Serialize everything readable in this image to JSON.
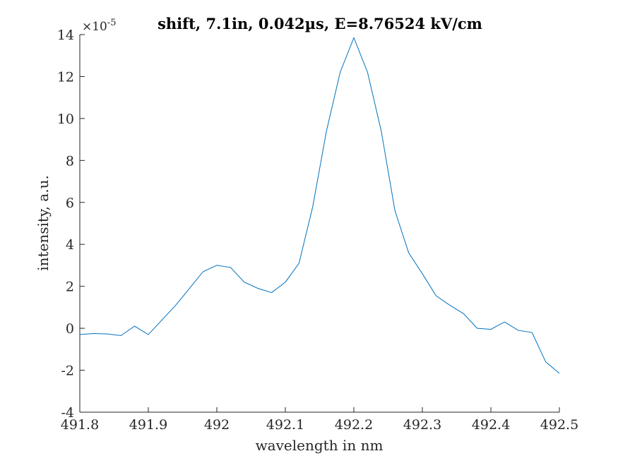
{
  "chart_data": {
    "type": "line",
    "title": "shift, 7.1in, 0.042µs, E=8.76524 kV/cm",
    "xlabel": "wavelength in nm",
    "ylabel": "intensity, a.u.",
    "exponent_label": "×10",
    "exponent_power": "-5",
    "xlim": [
      491.8,
      492.5
    ],
    "ylim": [
      -4,
      14
    ],
    "xticks": [
      491.8,
      491.9,
      492,
      492.1,
      492.2,
      492.3,
      492.4,
      492.5
    ],
    "xtick_labels": [
      "491.8",
      "491.9",
      "492",
      "492.1",
      "492.2",
      "492.3",
      "492.4",
      "492.5"
    ],
    "yticks": [
      -4,
      -2,
      0,
      2,
      4,
      6,
      8,
      10,
      12,
      14
    ],
    "ytick_labels": [
      "-4",
      "-2",
      "0",
      "2",
      "4",
      "6",
      "8",
      "10",
      "12",
      "14"
    ],
    "grid": false,
    "line_color": "#0072bd",
    "series": [
      {
        "x": [
          491.8,
          491.82,
          491.84,
          491.86,
          491.88,
          491.9,
          491.92,
          491.94,
          491.96,
          491.98,
          492.0,
          492.02,
          492.04,
          492.06,
          492.08,
          492.1,
          492.12,
          492.14,
          492.16,
          492.18,
          492.2,
          492.22,
          492.24,
          492.26,
          492.28,
          492.3,
          492.32,
          492.34,
          492.36,
          492.38,
          492.4,
          492.42,
          492.44,
          492.46,
          492.48,
          492.5
        ],
        "values": [
          -0.3,
          -0.25,
          -0.27,
          -0.35,
          0.1,
          -0.3,
          0.4,
          1.1,
          1.9,
          2.7,
          3.0,
          2.9,
          2.2,
          1.9,
          1.7,
          2.2,
          3.1,
          5.8,
          9.4,
          12.2,
          13.85,
          12.2,
          9.4,
          5.6,
          3.6,
          2.6,
          1.55,
          1.1,
          0.7,
          0.0,
          -0.05,
          0.3,
          -0.1,
          -0.2,
          -1.6,
          -2.15
        ]
      }
    ]
  }
}
